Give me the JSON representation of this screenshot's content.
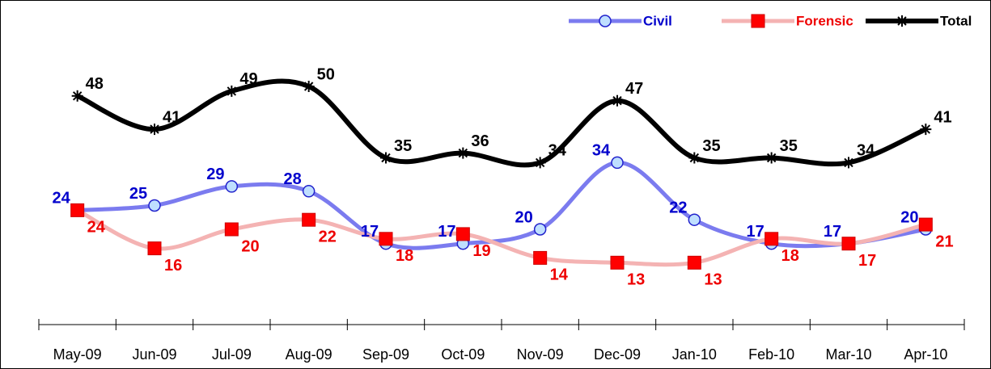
{
  "chart_data": {
    "type": "line",
    "categories": [
      "May-09",
      "Jun-09",
      "Jul-09",
      "Aug-09",
      "Sep-09",
      "Oct-09",
      "Nov-09",
      "Dec-09",
      "Jan-10",
      "Feb-10",
      "Mar-10",
      "Apr-10"
    ],
    "series": [
      {
        "name": "Civil",
        "color": "#7b7bef",
        "label_color": "#0000cc",
        "values": [
          24,
          25,
          29,
          28,
          17,
          17,
          20,
          34,
          22,
          17,
          17,
          20
        ]
      },
      {
        "name": "Forensic",
        "color": "#f4b3b3",
        "label_color": "#ee0000",
        "values": [
          24,
          16,
          20,
          22,
          18,
          19,
          14,
          13,
          13,
          18,
          17,
          21
        ]
      },
      {
        "name": "Total",
        "color": "#000000",
        "label_color": "#000000",
        "values": [
          48,
          41,
          49,
          50,
          35,
          36,
          34,
          47,
          35,
          35,
          34,
          41
        ]
      }
    ],
    "ylim": [
      0,
      55
    ],
    "legend": "top-right"
  }
}
